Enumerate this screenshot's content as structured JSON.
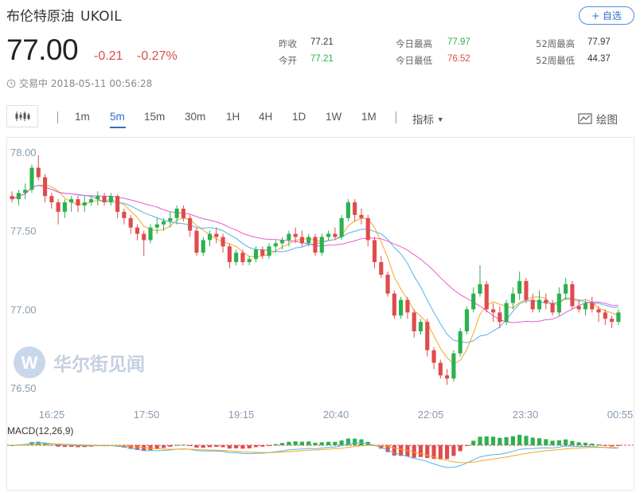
{
  "header": {
    "name": "布伦特原油",
    "code": "UKOIL",
    "watch_label": "+ 自选"
  },
  "quote": {
    "price": "77.00",
    "change": "-0.21",
    "change_pct": "-0.27%",
    "timestamp": "交易中 2018-05-11 00:56:28",
    "time_icon": "clock-icon"
  },
  "stats": {
    "prev_close_label": "昨收",
    "prev_close": "77.21",
    "open_label": "今开",
    "open": "77.21",
    "high_label": "今日最高",
    "high": "77.97",
    "low_label": "今日最低",
    "low": "76.52",
    "wk52_high_label": "52周最高",
    "wk52_high": "77.97",
    "wk52_low_label": "52周最低",
    "wk52_low": "44.37"
  },
  "toolbar": {
    "chart_type_icon": "candlestick-icon",
    "periods": [
      "1m",
      "5m",
      "15m",
      "30m",
      "1H",
      "4H",
      "1D",
      "1W",
      "1M"
    ],
    "active_period": "5m",
    "indicator_label": "指标",
    "draw_label": "绘图",
    "draw_icon": "draw-icon"
  },
  "watermark": {
    "text": "华尔街见闻"
  },
  "colors": {
    "up": "#2bb14e",
    "down": "#e04b4b",
    "accent": "#2f6fc6",
    "ma1": "#f5a623",
    "ma2": "#4fb3e8",
    "ma3": "#e85bd0"
  },
  "chart_data": {
    "type": "candlestick",
    "y_ticks": [
      "78.00",
      "77.50",
      "77.00",
      "76.50"
    ],
    "ylim": [
      76.46,
      78.05
    ],
    "x_ticks": [
      "16:25",
      "17:50",
      "19:15",
      "20:40",
      "22:05",
      "23:30",
      "00:55"
    ],
    "macd_label": "MACD(12,26,9)",
    "candles": [
      [
        77.72,
        77.75,
        77.68,
        77.7
      ],
      [
        77.7,
        77.76,
        77.66,
        77.74
      ],
      [
        77.74,
        77.8,
        77.7,
        77.76
      ],
      [
        77.76,
        77.92,
        77.74,
        77.9
      ],
      [
        77.9,
        77.98,
        77.82,
        77.84
      ],
      [
        77.84,
        77.86,
        77.68,
        77.72
      ],
      [
        77.72,
        77.74,
        77.64,
        77.68
      ],
      [
        77.68,
        77.7,
        77.54,
        77.62
      ],
      [
        77.62,
        77.7,
        77.58,
        77.68
      ],
      [
        77.68,
        77.72,
        77.62,
        77.7
      ],
      [
        77.7,
        77.72,
        77.62,
        77.66
      ],
      [
        77.66,
        77.72,
        77.62,
        77.68
      ],
      [
        77.68,
        77.72,
        77.66,
        77.7
      ],
      [
        77.7,
        77.75,
        77.66,
        77.72
      ],
      [
        77.72,
        77.74,
        77.66,
        77.68
      ],
      [
        77.68,
        77.74,
        77.66,
        77.72
      ],
      [
        77.72,
        77.73,
        77.58,
        77.62
      ],
      [
        77.62,
        77.64,
        77.54,
        77.58
      ],
      [
        77.58,
        77.6,
        77.48,
        77.52
      ],
      [
        77.52,
        77.54,
        77.44,
        77.48
      ],
      [
        77.48,
        77.5,
        77.34,
        77.44
      ],
      [
        77.44,
        77.54,
        77.42,
        77.52
      ],
      [
        77.52,
        77.58,
        77.48,
        77.54
      ],
      [
        77.54,
        77.58,
        77.5,
        77.56
      ],
      [
        77.56,
        77.62,
        77.52,
        77.58
      ],
      [
        77.58,
        77.66,
        77.54,
        77.64
      ],
      [
        77.64,
        77.66,
        77.56,
        77.58
      ],
      [
        77.58,
        77.6,
        77.46,
        77.5
      ],
      [
        77.5,
        77.52,
        77.34,
        77.36
      ],
      [
        77.36,
        77.46,
        77.34,
        77.44
      ],
      [
        77.44,
        77.5,
        77.4,
        77.48
      ],
      [
        77.48,
        77.52,
        77.42,
        77.46
      ],
      [
        77.46,
        77.48,
        77.36,
        77.4
      ],
      [
        77.4,
        77.42,
        77.26,
        77.3
      ],
      [
        77.3,
        77.38,
        77.28,
        77.36
      ],
      [
        77.36,
        77.38,
        77.28,
        77.3
      ],
      [
        77.3,
        77.34,
        77.28,
        77.32
      ],
      [
        77.32,
        77.4,
        77.3,
        77.38
      ],
      [
        77.38,
        77.4,
        77.32,
        77.34
      ],
      [
        77.34,
        77.42,
        77.32,
        77.4
      ],
      [
        77.4,
        77.44,
        77.36,
        77.42
      ],
      [
        77.42,
        77.46,
        77.38,
        77.44
      ],
      [
        77.44,
        77.5,
        77.4,
        77.48
      ],
      [
        77.48,
        77.52,
        77.42,
        77.46
      ],
      [
        77.46,
        77.5,
        77.4,
        77.42
      ],
      [
        77.42,
        77.48,
        77.4,
        77.46
      ],
      [
        77.46,
        77.48,
        77.34,
        77.36
      ],
      [
        77.36,
        77.48,
        77.34,
        77.46
      ],
      [
        77.46,
        77.5,
        77.44,
        77.48
      ],
      [
        77.48,
        77.52,
        77.44,
        77.46
      ],
      [
        77.46,
        77.6,
        77.44,
        77.58
      ],
      [
        77.58,
        77.7,
        77.56,
        77.68
      ],
      [
        77.68,
        77.7,
        77.56,
        77.6
      ],
      [
        77.6,
        77.64,
        77.54,
        77.58
      ],
      [
        77.58,
        77.6,
        77.4,
        77.44
      ],
      [
        77.44,
        77.46,
        77.26,
        77.3
      ],
      [
        77.3,
        77.34,
        77.2,
        77.22
      ],
      [
        77.22,
        77.24,
        77.08,
        77.1
      ],
      [
        77.1,
        77.12,
        76.94,
        76.96
      ],
      [
        76.96,
        77.08,
        76.94,
        77.06
      ],
      [
        77.06,
        77.08,
        76.94,
        76.98
      ],
      [
        76.98,
        77.0,
        76.82,
        76.86
      ],
      [
        76.86,
        76.94,
        76.84,
        76.92
      ],
      [
        76.92,
        76.94,
        76.7,
        76.74
      ],
      [
        76.74,
        76.76,
        76.62,
        76.66
      ],
      [
        76.66,
        76.68,
        76.56,
        76.58
      ],
      [
        76.58,
        76.62,
        76.52,
        76.56
      ],
      [
        76.56,
        76.74,
        76.54,
        76.72
      ],
      [
        76.72,
        76.88,
        76.7,
        76.86
      ],
      [
        76.86,
        77.02,
        76.84,
        77.0
      ],
      [
        77.0,
        77.14,
        76.98,
        77.1
      ],
      [
        77.1,
        77.28,
        77.08,
        77.16
      ],
      [
        77.16,
        77.18,
        76.98,
        77.0
      ],
      [
        77.0,
        77.04,
        76.92,
        76.98
      ],
      [
        76.98,
        77.02,
        76.88,
        76.92
      ],
      [
        76.92,
        77.06,
        76.9,
        77.04
      ],
      [
        77.04,
        77.14,
        77.0,
        77.1
      ],
      [
        77.1,
        77.24,
        77.06,
        77.18
      ],
      [
        77.18,
        77.2,
        77.04,
        77.06
      ],
      [
        77.06,
        77.1,
        76.98,
        77.0
      ],
      [
        77.0,
        77.12,
        76.98,
        77.06
      ],
      [
        77.06,
        77.1,
        77.0,
        77.04
      ],
      [
        77.04,
        77.06,
        76.96,
        76.98
      ],
      [
        76.98,
        77.14,
        76.96,
        77.1
      ],
      [
        77.1,
        77.2,
        77.06,
        77.16
      ],
      [
        77.16,
        77.18,
        77.0,
        77.02
      ],
      [
        77.02,
        77.06,
        76.98,
        77.0
      ],
      [
        77.0,
        77.06,
        76.96,
        77.04
      ],
      [
        77.04,
        77.08,
        76.98,
        77.0
      ],
      [
        77.0,
        77.02,
        76.92,
        76.98
      ],
      [
        76.98,
        77.0,
        76.9,
        76.94
      ],
      [
        76.94,
        76.96,
        76.88,
        76.92
      ],
      [
        76.92,
        77.0,
        76.9,
        76.98
      ]
    ]
  }
}
